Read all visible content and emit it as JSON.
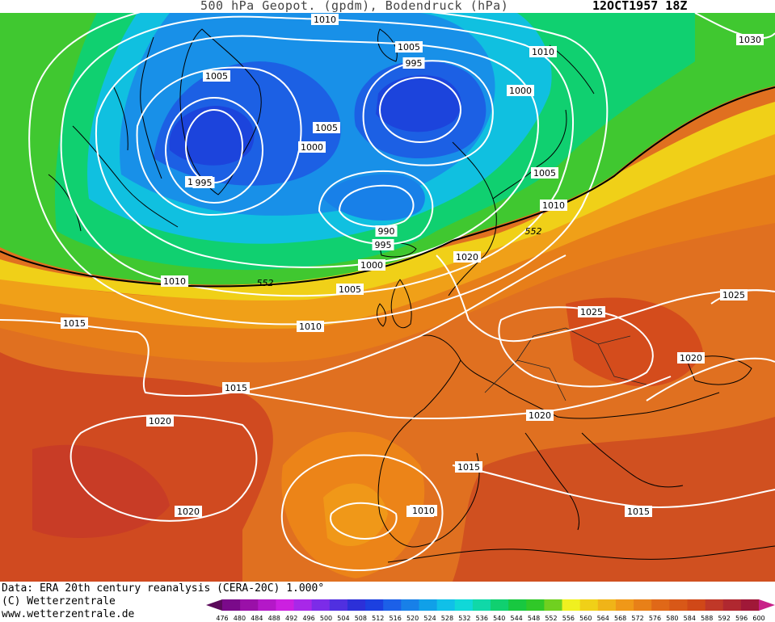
{
  "header": {
    "title": "500 hPa Geopot. (gpdm), Bodendruck (hPa)",
    "date": "12OCT1957 18Z"
  },
  "footer": {
    "data_source": "Data: ERA 20th century reanalysis (CERA-20C) 1.000°",
    "copyright": "(C) Wetterzentrale",
    "website": "www.wetterzentrale.de"
  },
  "legend": {
    "unit_values": [
      "476",
      "480",
      "484",
      "488",
      "492",
      "496",
      "500",
      "504",
      "508",
      "512",
      "516",
      "520",
      "524",
      "528",
      "532",
      "536",
      "540",
      "544",
      "548",
      "552",
      "556",
      "560",
      "564",
      "568",
      "572",
      "576",
      "580",
      "584",
      "588",
      "592",
      "596",
      "600"
    ],
    "colors": [
      "#5a0a5a",
      "#7a0a8a",
      "#9a10a8",
      "#b418c8",
      "#cc20e0",
      "#a828e8",
      "#7c2ce8",
      "#5030e0",
      "#2c30d8",
      "#1c40e0",
      "#1c60e8",
      "#1880e8",
      "#10a0e8",
      "#10c0e8",
      "#10d8d8",
      "#10d8a8",
      "#10d070",
      "#18c840",
      "#30c828",
      "#70d020",
      "#f0f020",
      "#f0d018",
      "#f0b418",
      "#f09818",
      "#e88018",
      "#e06818",
      "#d85818",
      "#d04818",
      "#c03828",
      "#b02830",
      "#a01838",
      "#c82088"
    ]
  },
  "isobar_labels": [
    {
      "text": "1010"
    },
    {
      "text": "1005"
    },
    {
      "text": "995"
    },
    {
      "text": "1010"
    },
    {
      "text": "1000"
    },
    {
      "text": "1030"
    },
    {
      "text": "1005"
    },
    {
      "text": "1005"
    },
    {
      "text": "1000"
    },
    {
      "text": "995"
    },
    {
      "text": "1000"
    },
    {
      "text": "1005"
    },
    {
      "text": "1010"
    },
    {
      "text": "1015"
    },
    {
      "text": "990"
    },
    {
      "text": "995"
    },
    {
      "text": "1000"
    },
    {
      "text": "1020"
    },
    {
      "text": "1010"
    },
    {
      "text": "1005"
    },
    {
      "text": "1010"
    },
    {
      "text": "1015"
    },
    {
      "text": "1025"
    },
    {
      "text": "1025"
    },
    {
      "text": "1020"
    },
    {
      "text": "1015"
    },
    {
      "text": "1020"
    },
    {
      "text": "1020"
    },
    {
      "text": "1015"
    },
    {
      "text": "1010"
    },
    {
      "text": "1015"
    },
    {
      "text": "1020"
    }
  ],
  "contour_552_labels": [
    "552",
    "552"
  ],
  "colors": {
    "isobar": "#ffffff",
    "contour_552": "#000000",
    "coastline": "#000000"
  }
}
